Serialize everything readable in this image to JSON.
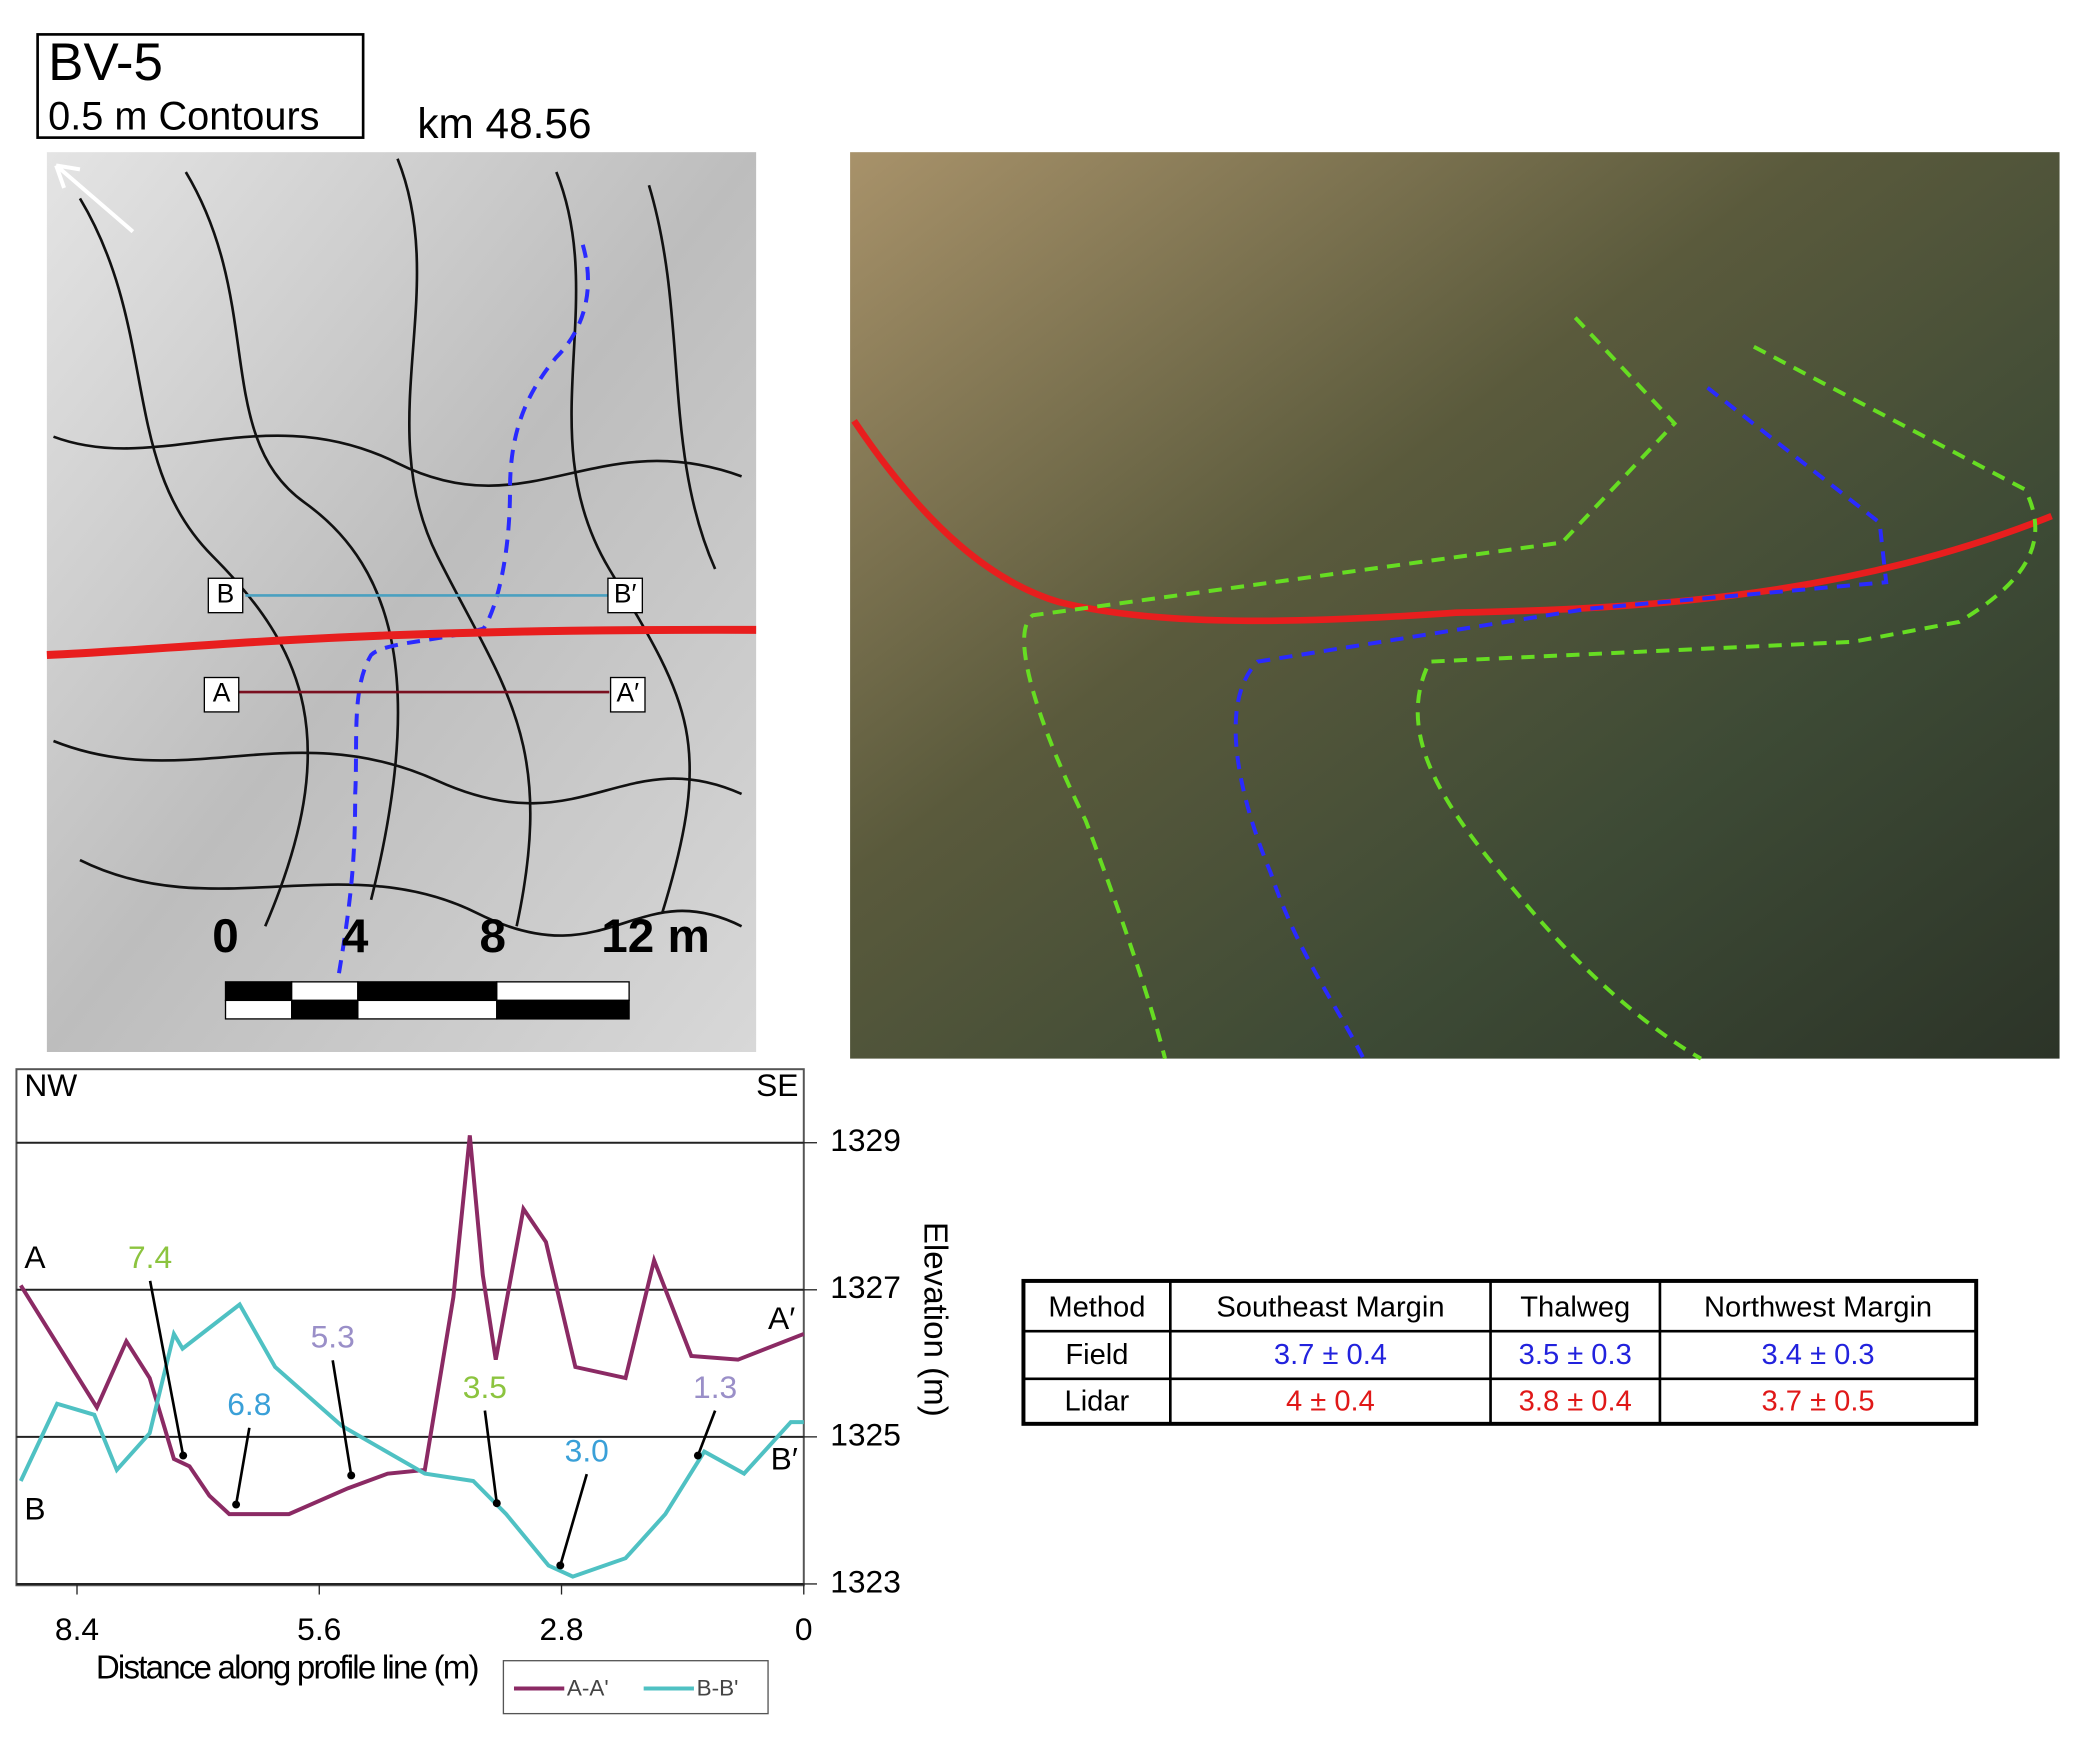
{
  "map": {
    "title": "BV-5",
    "subtitle": "0.5 m Contours",
    "location": "km 48.56",
    "profile_labels": [
      "B",
      "B′",
      "A",
      "A′"
    ],
    "scale_labels": [
      "0",
      "4",
      "8",
      "12 m"
    ]
  },
  "chart_data": {
    "type": "line",
    "x_label": "Distance along profile line (m)",
    "y_label": "Elevation (m)",
    "corner_labels": [
      "NW",
      "SE"
    ],
    "end_labels": [
      "A",
      "A′",
      "B",
      "B′"
    ],
    "xlim": [
      9.1,
      0
    ],
    "ylim": [
      1323,
      1330
    ],
    "xticks": [
      8.4,
      5.6,
      2.8,
      0
    ],
    "yticks": [
      1323,
      1325,
      1327,
      1329
    ],
    "grid": true,
    "series": [
      {
        "name": "A-A'",
        "color": "#8b2a64",
        "x": [
          9.05,
          8.17,
          7.83,
          7.56,
          7.28,
          7.1,
          6.87,
          6.64,
          5.95,
          5.27,
          4.81,
          4.38,
          4.05,
          3.86,
          3.71,
          3.56,
          3.24,
          2.98,
          2.64,
          2.06,
          1.73,
          1.3,
          0.76,
          0
        ],
        "values": [
          1327.06,
          1325.4,
          1326.3,
          1325.8,
          1324.7,
          1324.6,
          1324.2,
          1323.95,
          1323.95,
          1324.3,
          1324.5,
          1324.55,
          1326.9,
          1329.1,
          1327.2,
          1326.05,
          1328.1,
          1327.65,
          1325.95,
          1325.8,
          1327.4,
          1326.1,
          1326.05,
          1326.4
        ]
      },
      {
        "name": "B-B'",
        "color": "#4fc1c3",
        "x": [
          9.05,
          8.63,
          8.2,
          7.94,
          7.56,
          7.28,
          7.18,
          6.52,
          6.11,
          5.34,
          4.38,
          3.82,
          3.44,
          2.95,
          2.67,
          2.06,
          1.6,
          1.15,
          0.69,
          0.15,
          0
        ],
        "values": [
          1324.4,
          1325.45,
          1325.3,
          1324.55,
          1325.05,
          1326.4,
          1326.2,
          1326.8,
          1325.95,
          1325.15,
          1324.5,
          1324.4,
          1323.95,
          1323.25,
          1323.1,
          1323.35,
          1323.95,
          1324.8,
          1324.5,
          1325.2,
          1325.2
        ]
      }
    ],
    "annotations": [
      {
        "text": "7.4",
        "color": "#8cc43f"
      },
      {
        "text": "6.8",
        "color": "#3aa0d8"
      },
      {
        "text": "5.3",
        "color": "#9a8fc8"
      },
      {
        "text": "3.5",
        "color": "#8cc43f"
      },
      {
        "text": "3.0",
        "color": "#3aa0d8"
      },
      {
        "text": "1.3",
        "color": "#9a8fc8"
      }
    ]
  },
  "table": {
    "header": [
      "Method",
      "Southeast Margin",
      "Thalweg",
      "Northwest Margin"
    ],
    "rows": [
      [
        "Field",
        "3.7 ± 0.4",
        "3.5 ± 0.3",
        "3.4 ± 0.3"
      ],
      [
        "Lidar",
        "4 ± 0.4",
        "3.8 ± 0.4",
        "3.7 ± 0.5"
      ]
    ]
  }
}
